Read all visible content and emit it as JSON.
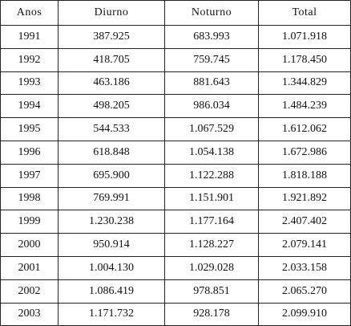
{
  "table": {
    "header": [
      "Anos",
      "Diurno",
      "Noturno",
      "Total"
    ],
    "rows": [
      [
        "1991",
        "387.925",
        "683.993",
        "1.071.918"
      ],
      [
        "1992",
        "418.705",
        "759.745",
        "1.178.450"
      ],
      [
        "1993",
        "463.186",
        "881.643",
        "1.344.829"
      ],
      [
        "1994",
        "498.205",
        "986.034",
        "1.484.239"
      ],
      [
        "1995",
        "544.533",
        "1.067.529",
        "1.612.062"
      ],
      [
        "1996",
        "618.848",
        "1.054.138",
        "1.672.986"
      ],
      [
        "1997",
        "695.900",
        "1.122.288",
        "1.818.188"
      ],
      [
        "1998",
        "769.991",
        "1.151.901",
        "1.921.892"
      ],
      [
        "1999",
        "1.230.238",
        "1.177.164",
        "2.407.402"
      ],
      [
        "2000",
        "950.914",
        "1.128.227",
        "2.079.141"
      ],
      [
        "2001",
        "1.004.130",
        "1.029.028",
        "2.033.158"
      ],
      [
        "2002",
        "1.086.419",
        "978.851",
        "2.065.270"
      ],
      [
        "2003",
        "1.171.732",
        "928.178",
        "2.099.910"
      ]
    ]
  }
}
